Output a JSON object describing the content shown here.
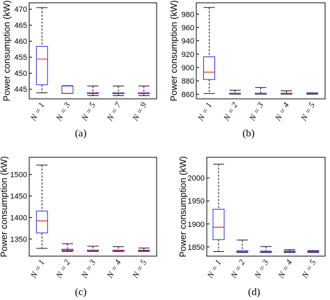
{
  "chart_data": [
    {
      "type": "box",
      "caption": "(a)",
      "ylabel": "Power consumption (kW)",
      "ylim": [
        442,
        472
      ],
      "yticks": [
        445,
        450,
        455,
        460,
        465,
        470
      ],
      "categories": [
        "N = 1",
        "N = 3",
        "N = 5",
        "N = 7",
        "N = 9"
      ],
      "boxes": [
        {
          "whisker_low": 443.9,
          "q1": 446.4,
          "median": 454.4,
          "q3": 458.4,
          "whisker_high": 470.5
        },
        {
          "whisker_low": 443.7,
          "q1": 443.7,
          "median": 443.7,
          "q3": 446.0,
          "whisker_high": 446.1
        },
        {
          "whisker_low": 443.0,
          "q1": 443.6,
          "median": 443.7,
          "q3": 443.9,
          "whisker_high": 446.0
        },
        {
          "whisker_low": 443.0,
          "q1": 443.6,
          "median": 443.7,
          "q3": 443.9,
          "whisker_high": 446.0
        },
        {
          "whisker_low": 443.0,
          "q1": 443.6,
          "median": 443.7,
          "q3": 443.9,
          "whisker_high": 446.0
        }
      ]
    },
    {
      "type": "box",
      "caption": "(b)",
      "ylabel": "Power consumption (kW)",
      "ylim": [
        853,
        997
      ],
      "yticks": [
        860,
        880,
        900,
        920,
        940,
        960,
        980
      ],
      "categories": [
        "N = 1",
        "N = 2",
        "N = 3",
        "N = 4",
        "N = 5"
      ],
      "boxes": [
        {
          "whisker_low": 861,
          "q1": 882,
          "median": 893,
          "q3": 916,
          "whisker_high": 990
        },
        {
          "whisker_low": 860,
          "q1": 860.5,
          "median": 861,
          "q3": 861.5,
          "whisker_high": 866
        },
        {
          "whisker_low": 860,
          "q1": 860.5,
          "median": 861,
          "q3": 861.5,
          "whisker_high": 870
        },
        {
          "whisker_low": 860,
          "q1": 860.5,
          "median": 861,
          "q3": 861.5,
          "whisker_high": 865
        },
        {
          "whisker_low": 860,
          "q1": 860.5,
          "median": 861,
          "q3": 861.5,
          "whisker_high": 862
        }
      ]
    },
    {
      "type": "box",
      "caption": "(c)",
      "ylabel": "Power consumption (kW)",
      "ylim": [
        1310,
        1540
      ],
      "yticks": [
        1350,
        1400,
        1450,
        1500
      ],
      "categories": [
        "N = 1",
        "N = 2",
        "N = 3",
        "N = 4",
        "N = 5"
      ],
      "boxes": [
        {
          "whisker_low": 1328,
          "q1": 1364,
          "median": 1392,
          "q3": 1415,
          "whisker_high": 1522
        },
        {
          "whisker_low": 1321,
          "q1": 1323,
          "median": 1324,
          "q3": 1326,
          "whisker_high": 1339
        },
        {
          "whisker_low": 1321,
          "q1": 1322,
          "median": 1323,
          "q3": 1324,
          "whisker_high": 1333
        },
        {
          "whisker_low": 1321,
          "q1": 1322,
          "median": 1323,
          "q3": 1324,
          "whisker_high": 1332
        },
        {
          "whisker_low": 1321,
          "q1": 1322,
          "median": 1323,
          "q3": 1324,
          "whisker_high": 1329
        }
      ]
    },
    {
      "type": "box",
      "caption": "(d)",
      "ylabel": "Power consumption (kW)",
      "ylim": [
        1830,
        2045
      ],
      "yticks": [
        1850,
        1900,
        1950,
        2000
      ],
      "categories": [
        "N = 1",
        "N = 2",
        "N = 3",
        "N = 4",
        "N = 5"
      ],
      "boxes": [
        {
          "whisker_low": 1840,
          "q1": 1866,
          "median": 1893,
          "q3": 1932,
          "whisker_high": 2030
        },
        {
          "whisker_low": 1838,
          "q1": 1839,
          "median": 1840,
          "q3": 1842,
          "whisker_high": 1865
        },
        {
          "whisker_low": 1838,
          "q1": 1839,
          "median": 1840,
          "q3": 1841,
          "whisker_high": 1851
        },
        {
          "whisker_low": 1838,
          "q1": 1839,
          "median": 1840,
          "q3": 1841,
          "whisker_high": 1844
        },
        {
          "whisker_low": 1838,
          "q1": 1839,
          "median": 1840,
          "q3": 1841,
          "whisker_high": 1842
        }
      ]
    }
  ],
  "colors": {
    "box_edge": "#2e2ee6",
    "median": "#e8262e",
    "whisker": "#111111",
    "axis": "#000000"
  }
}
